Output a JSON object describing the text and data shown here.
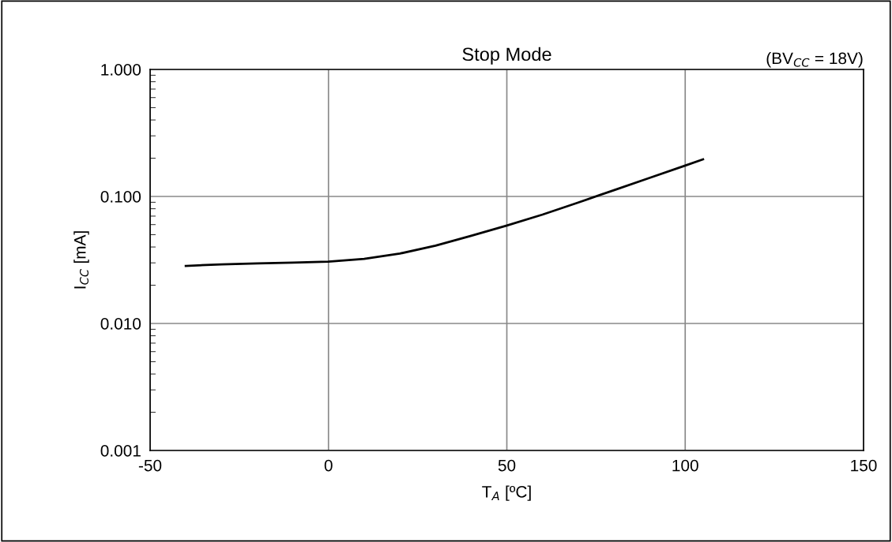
{
  "chart_data": {
    "type": "line",
    "title": "Stop Mode",
    "xlabel": "T$_{A}$ [ºC]",
    "ylabel": "I$_{CC}$ [mA]",
    "annotations": [
      "(BV$_{CC}$ = 18V)"
    ],
    "x": [
      -40,
      -30,
      -20,
      -10,
      0,
      10,
      20,
      30,
      40,
      50,
      60,
      70,
      80,
      90,
      100,
      105
    ],
    "series": [
      {
        "color": "#000000",
        "values": [
          0.0284,
          0.0292,
          0.0297,
          0.0301,
          0.0307,
          0.0323,
          0.0355,
          0.041,
          0.049,
          0.059,
          0.072,
          0.0895,
          0.112,
          0.14,
          0.175,
          0.196
        ]
      }
    ],
    "xlim": [
      -50,
      150
    ],
    "xticks": [
      -50,
      0,
      50,
      100,
      150
    ],
    "ylim": [
      0.001,
      1
    ],
    "yticks": [
      {
        "value": 0.001,
        "label": "0.001"
      },
      {
        "value": 0.01,
        "label": "0.010"
      },
      {
        "value": 0.1,
        "label": "0.100"
      },
      {
        "value": 1,
        "label": "1.000"
      }
    ],
    "log": "y",
    "grid": true,
    "marker": "none",
    "line_style": "solid"
  }
}
